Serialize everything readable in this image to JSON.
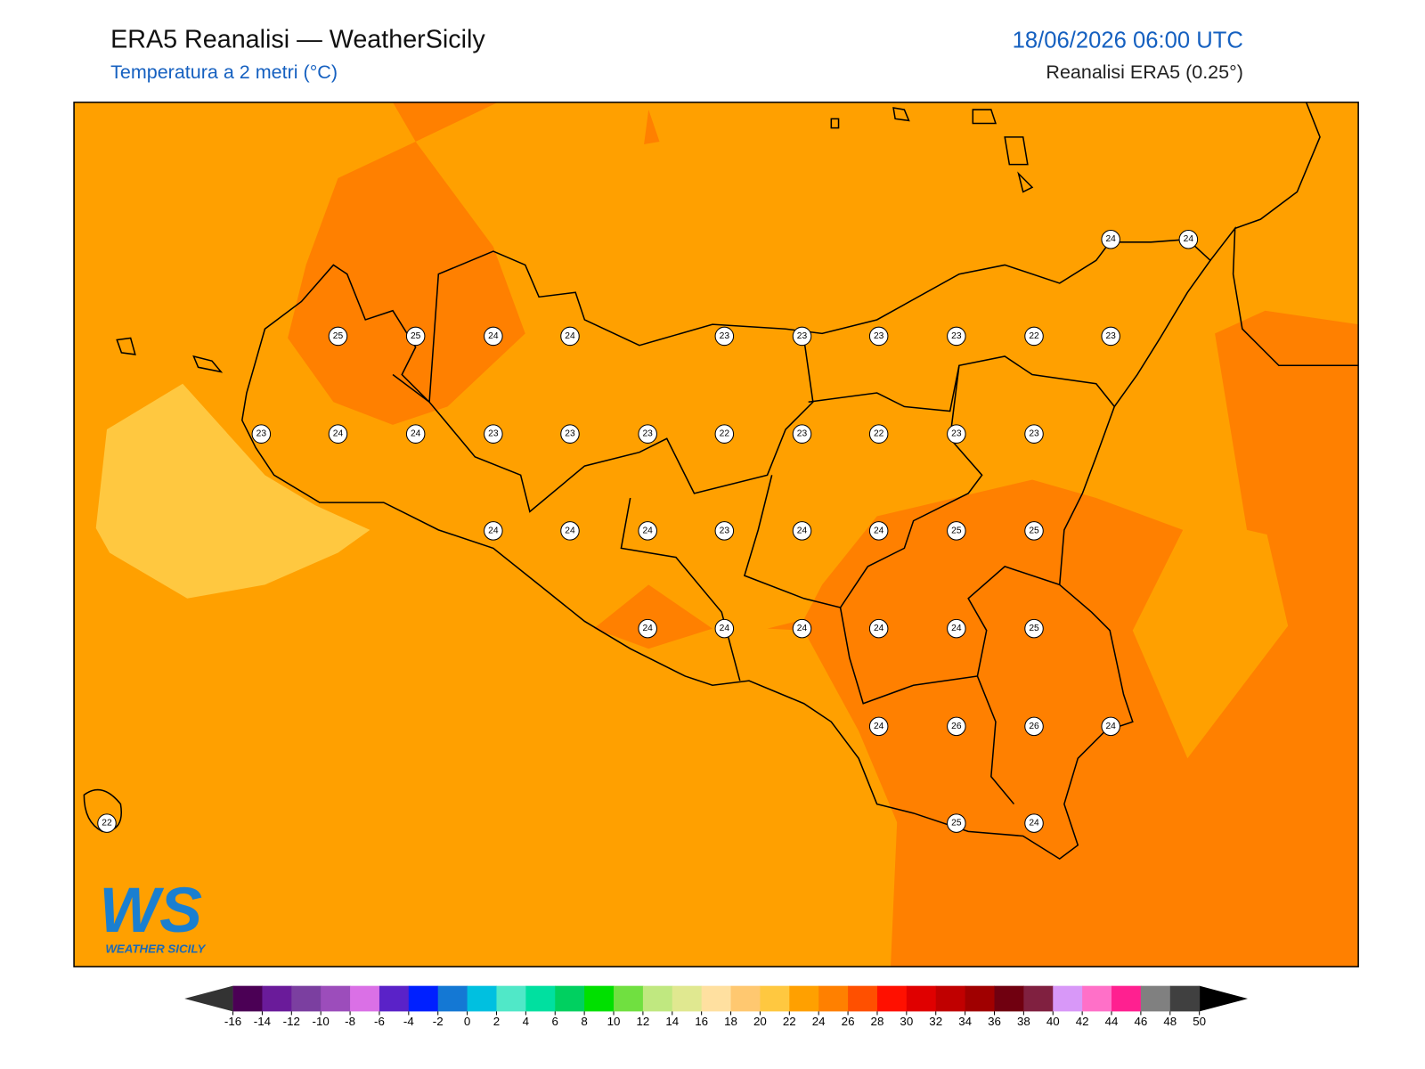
{
  "header": {
    "title": "ERA5 Reanalisi — WeatherSicily",
    "subtitle": "Temperatura a 2 metri (°C)",
    "datetime": "18/06/2026 06:00 UTC",
    "source": "Reanalisi ERA5 (0.25°)"
  },
  "stations": [
    24,
    24,
    25,
    25,
    24,
    24,
    23,
    23,
    23,
    23,
    22,
    23,
    23,
    24,
    24,
    23,
    23,
    23,
    22,
    23,
    22,
    23,
    23,
    24,
    24,
    24,
    23,
    24,
    24,
    25,
    25,
    24,
    24,
    24,
    24,
    24,
    25,
    24,
    26,
    26,
    24,
    22,
    25,
    24
  ],
  "logo": {
    "mark": "WS",
    "name": "WEATHER SICILY"
  },
  "colorbar": {
    "ticks": [
      -16,
      -14,
      -12,
      -10,
      -8,
      -6,
      -4,
      -2,
      0,
      2,
      4,
      6,
      8,
      10,
      12,
      14,
      16,
      18,
      20,
      22,
      24,
      26,
      28,
      30,
      32,
      34,
      36,
      38,
      40,
      42,
      44,
      46,
      48,
      50
    ],
    "colors": [
      "#4b0055",
      "#6a1b9a",
      "#7b3fa0",
      "#9c4dbb",
      "#da70e6",
      "#5a22c8",
      "#0020ff",
      "#1478d4",
      "#00c0e0",
      "#50e8c8",
      "#00e0a0",
      "#00d060",
      "#00e000",
      "#70e040",
      "#c0e880",
      "#e0e890",
      "#ffe0a0",
      "#ffc870",
      "#ffc840",
      "#ffa000",
      "#ff8000",
      "#ff5000",
      "#ff1000",
      "#e00000",
      "#c00000",
      "#a00000",
      "#700010",
      "#802040",
      "#d898f8",
      "#ff70c8",
      "#ff2090",
      "#808080",
      "#404040"
    ],
    "under_color": "#333333",
    "over_color": "#000000"
  }
}
